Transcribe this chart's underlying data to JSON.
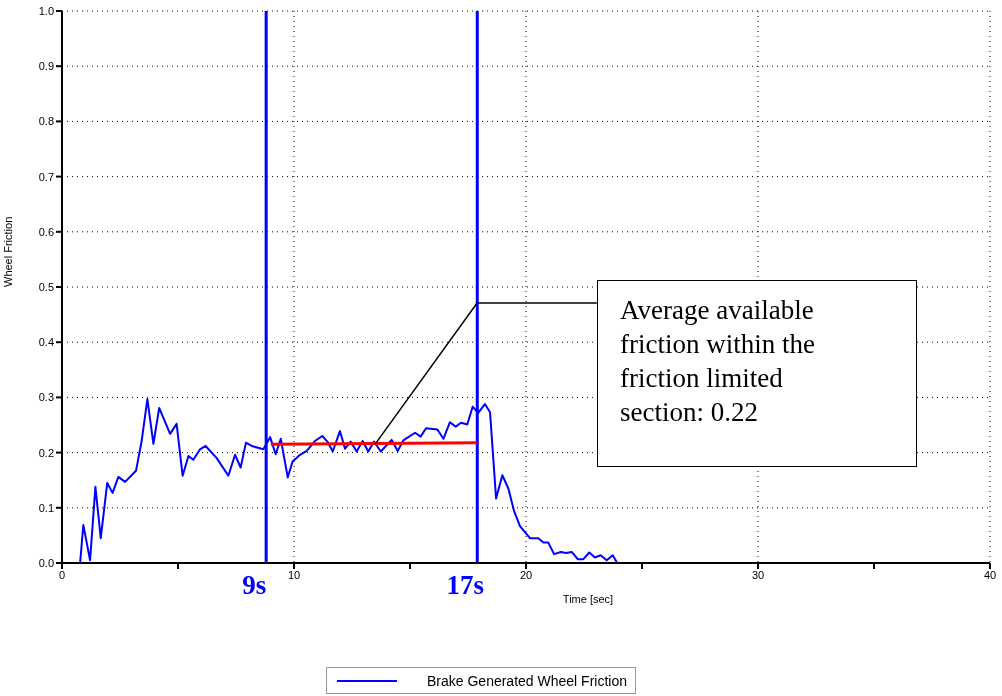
{
  "chart_data": {
    "type": "line",
    "xlabel": "Time [sec]",
    "ylabel": "Wheel Friction",
    "xlim": [
      0,
      40
    ],
    "xticks": [
      0,
      {
        "value": 5,
        "label": null
      },
      10,
      {
        "value": 15,
        "label": null
      },
      20,
      {
        "value": 25,
        "label": null
      },
      30,
      {
        "value": 35,
        "label": null
      },
      40
    ],
    "ylim": [
      0,
      1
    ],
    "yticks": [
      {
        "value": 0,
        "label": "0.0"
      },
      {
        "value": 0.1,
        "label": "0.1"
      },
      {
        "value": 0.2,
        "label": "0.2"
      },
      {
        "value": 0.3,
        "label": "0.3"
      },
      {
        "value": 0.4,
        "label": "0.4"
      },
      {
        "value": 0.5,
        "label": "0.5"
      },
      {
        "value": 0.6,
        "label": "0.6"
      },
      {
        "value": 0.7,
        "label": "0.7"
      },
      {
        "value": 0.8,
        "label": "0.8"
      },
      {
        "value": 0.9,
        "label": "0.9"
      },
      {
        "value": 1,
        "label": "1.0"
      }
    ],
    "grid": true,
    "legend": "bottom",
    "series": [
      {
        "name": "Brake Generated Wheel Friction",
        "color": "#0000ff",
        "x": [
          0.78,
          0.92,
          1.21,
          1.44,
          1.67,
          1.95,
          2.18,
          2.43,
          2.72,
          3.19,
          3.43,
          3.68,
          3.94,
          4.19,
          4.66,
          4.94,
          5.2,
          5.45,
          5.66,
          5.95,
          6.19,
          6.67,
          7.17,
          7.46,
          7.7,
          7.93,
          8.18,
          8.68,
          8.97,
          9.21,
          9.43,
          9.73,
          9.94,
          10.26,
          10.55,
          10.9,
          11.22,
          11.44,
          11.67,
          11.98,
          12.2,
          12.44,
          12.7,
          12.96,
          13.2,
          13.45,
          13.74,
          14.21,
          14.47,
          14.71,
          15.22,
          15.46,
          15.69,
          16.18,
          16.44,
          16.72,
          16.97,
          17.2,
          17.47,
          17.7,
          17.94,
          18.23,
          18.45,
          18.71,
          18.98,
          19.24,
          19.48,
          19.74,
          20.17,
          20.53,
          20.75,
          20.96,
          21.21,
          21.5,
          21.72,
          21.97,
          22.23,
          22.47,
          22.73,
          22.97,
          23.22,
          23.48,
          23.74,
          23.93
        ],
        "values": [
          0,
          0.069,
          0.005,
          0.138,
          0.045,
          0.145,
          0.127,
          0.156,
          0.147,
          0.167,
          0.22,
          0.297,
          0.216,
          0.281,
          0.234,
          0.252,
          0.158,
          0.194,
          0.187,
          0.206,
          0.212,
          0.19,
          0.158,
          0.196,
          0.173,
          0.218,
          0.212,
          0.206,
          0.228,
          0.197,
          0.225,
          0.155,
          0.184,
          0.196,
          0.203,
          0.221,
          0.23,
          0.22,
          0.202,
          0.239,
          0.207,
          0.22,
          0.202,
          0.221,
          0.202,
          0.22,
          0.202,
          0.223,
          0.203,
          0.222,
          0.236,
          0.229,
          0.244,
          0.242,
          0.225,
          0.255,
          0.247,
          0.254,
          0.251,
          0.283,
          0.272,
          0.288,
          0.273,
          0.117,
          0.159,
          0.135,
          0.095,
          0.067,
          0.045,
          0.045,
          0.037,
          0.037,
          0.016,
          0.02,
          0.018,
          0.02,
          0.007,
          0.007,
          0.019,
          0.01,
          0.014,
          0.005,
          0.014,
          0
        ]
      },
      {
        "type": "line",
        "color": "#ff0000",
        "x": [
          9,
          17.9
        ],
        "values": [
          0.215,
          0.218
        ]
      }
    ],
    "ref_lines": [
      {
        "axis": "x",
        "value": 8.8,
        "label": "9s",
        "color": "#0000ff"
      },
      {
        "axis": "x",
        "value": 17.9,
        "label": "17s",
        "color": "#0000ff"
      }
    ],
    "annotations": [
      {
        "text": "Average available friction within the friction limited section: 0.22",
        "x": 13.5,
        "y": 0.215
      }
    ]
  }
}
